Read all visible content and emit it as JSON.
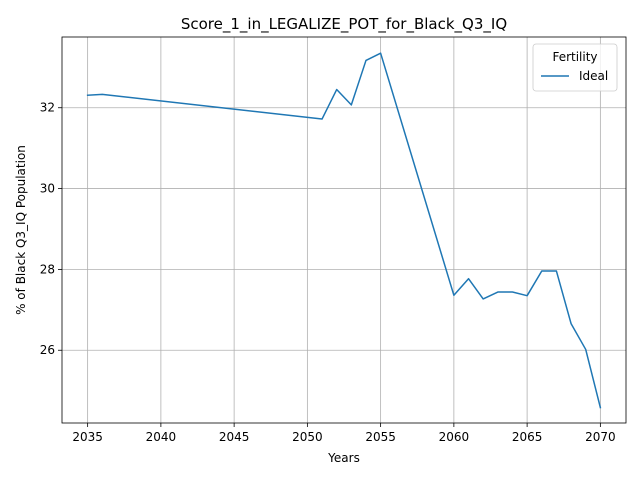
{
  "chart_data": {
    "type": "line",
    "title": "Score_1_in_LEGALIZE_POT_for_Black_Q3_IQ",
    "xlabel": "Years",
    "ylabel": "% of Black Q3_IQ Population",
    "xlim": [
      2033.25,
      2071.75
    ],
    "ylim": [
      24.2,
      33.75
    ],
    "x_ticks": [
      2035,
      2040,
      2045,
      2050,
      2055,
      2060,
      2065,
      2070
    ],
    "y_ticks": [
      26,
      28,
      30,
      32
    ],
    "grid": true,
    "legend": {
      "title": "Fertility",
      "position": "top-right"
    },
    "x": [
      2035,
      2036,
      2051,
      2052,
      2053,
      2054,
      2055,
      2060,
      2061,
      2062,
      2063,
      2064,
      2065,
      2066,
      2067,
      2068,
      2069,
      2070
    ],
    "series": [
      {
        "name": "Ideal",
        "color": "#1f77b4",
        "values": [
          32.31,
          32.33,
          31.72,
          32.45,
          32.07,
          33.17,
          33.35,
          27.36,
          27.77,
          27.27,
          27.44,
          27.44,
          27.35,
          27.96,
          27.96,
          26.66,
          26.02,
          24.58
        ]
      }
    ]
  }
}
